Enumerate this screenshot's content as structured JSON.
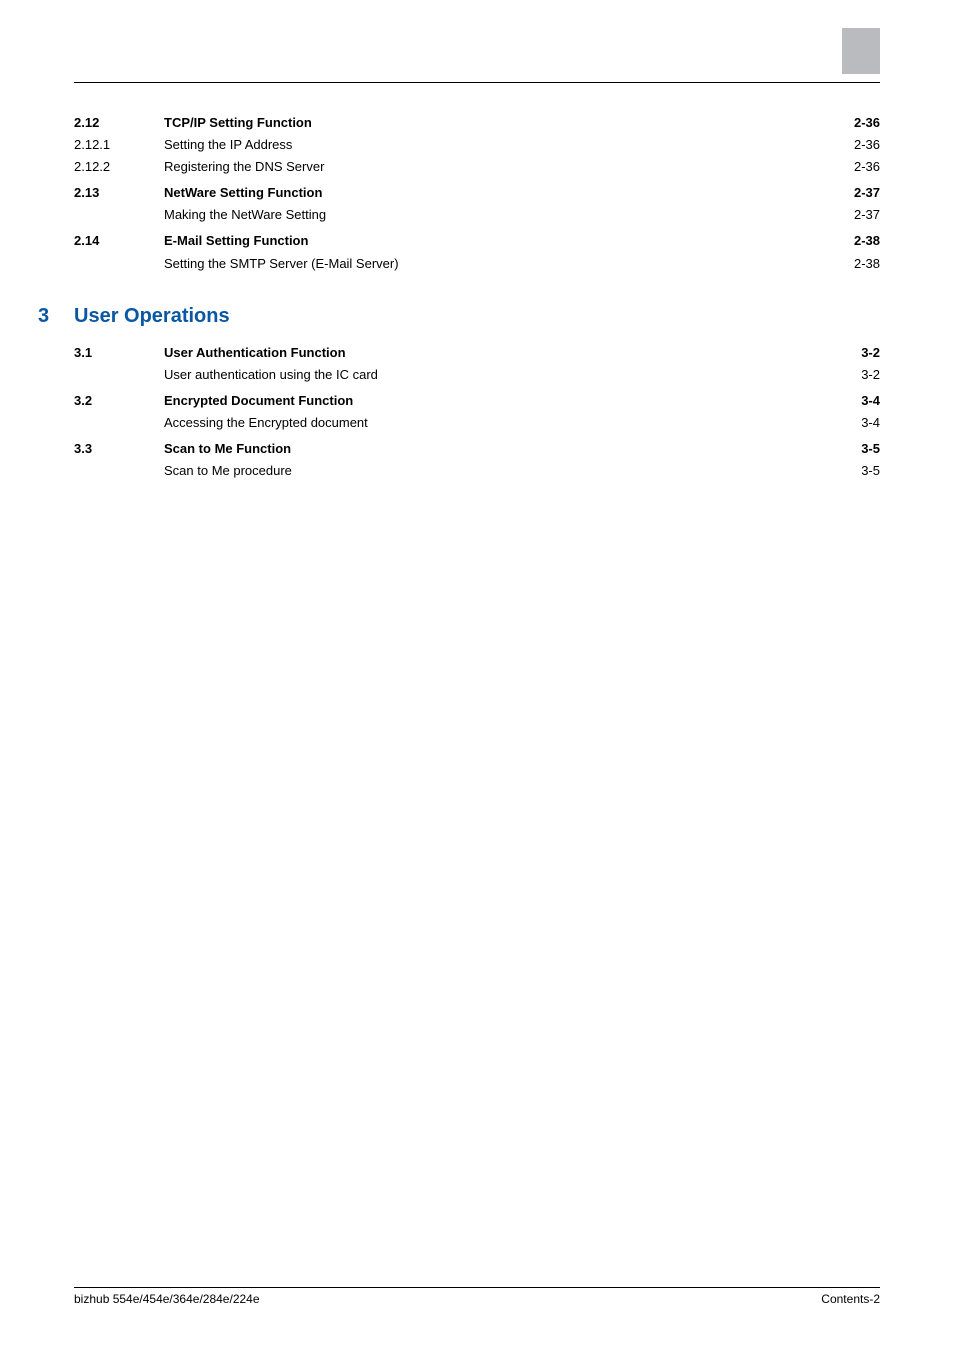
{
  "corner_color": "#b9bbbf",
  "section2": [
    {
      "num": "2.12",
      "title": "TCP/IP Setting Function",
      "page": "2-36",
      "bold": true
    },
    {
      "num": "2.12.1",
      "title": "Setting the IP Address",
      "page": "2-36",
      "bold": false
    },
    {
      "num": "2.12.2",
      "title": "Registering the DNS Server",
      "page": "2-36",
      "bold": false
    },
    {
      "num": "2.13",
      "title": "NetWare Setting Function",
      "page": "2-37",
      "bold": true
    },
    {
      "num": "",
      "title": "Making the NetWare Setting",
      "page": "2-37",
      "bold": false
    },
    {
      "num": "2.14",
      "title": "E-Mail Setting Function",
      "page": "2-38",
      "bold": true
    },
    {
      "num": "",
      "title": "Setting the SMTP Server (E-Mail Server)",
      "page": "2-38",
      "bold": false
    }
  ],
  "chapter": {
    "num": "3",
    "title": "User Operations"
  },
  "section3": [
    {
      "num": "3.1",
      "title": "User Authentication Function",
      "page": "3-2",
      "bold": true
    },
    {
      "num": "",
      "title": "User authentication using the IC card",
      "page": "3-2",
      "bold": false
    },
    {
      "num": "3.2",
      "title": "Encrypted Document Function",
      "page": "3-4",
      "bold": true
    },
    {
      "num": "",
      "title": "Accessing the Encrypted document",
      "page": "3-4",
      "bold": false
    },
    {
      "num": "3.3",
      "title": "Scan to Me Function",
      "page": "3-5",
      "bold": true
    },
    {
      "num": "",
      "title": "Scan to Me procedure",
      "page": "3-5",
      "bold": false
    }
  ],
  "footer": {
    "left": "bizhub 554e/454e/364e/284e/224e",
    "right": "Contents-2"
  }
}
